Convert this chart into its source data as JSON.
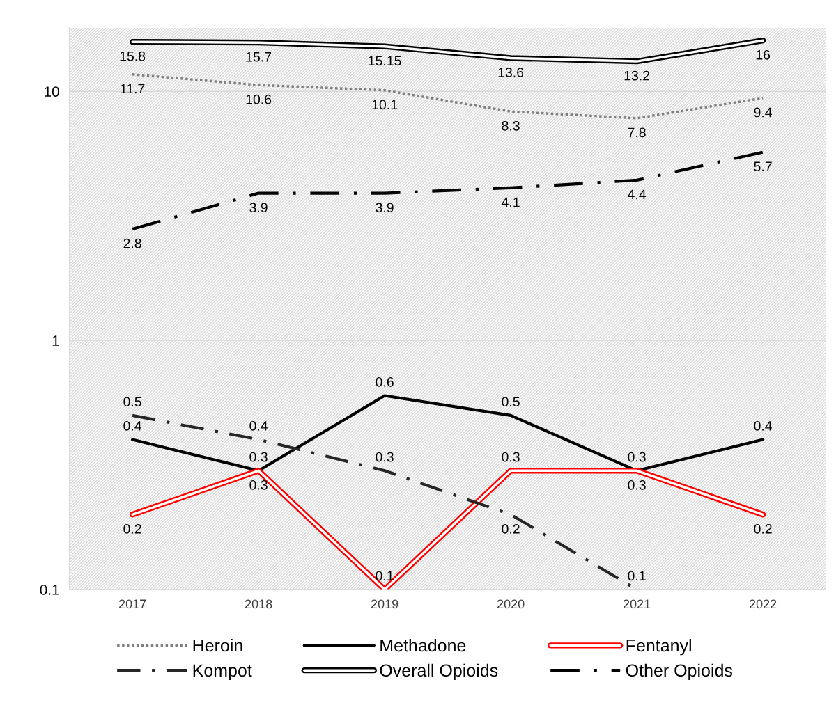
{
  "chart_data": {
    "type": "line",
    "categories": [
      "2017",
      "2018",
      "2019",
      "2020",
      "2021",
      "2022"
    ],
    "series": [
      {
        "name": "Heroin",
        "color": "#7f7f7f",
        "line_style": "dotted",
        "values": [
          11.7,
          10.6,
          10.1,
          8.3,
          7.8,
          9.4
        ]
      },
      {
        "name": "Methadone",
        "color": "#000000",
        "line_style": "solid",
        "values": [
          0.4,
          0.3,
          0.6,
          0.5,
          0.3,
          0.4
        ]
      },
      {
        "name": "Fentanyl",
        "color": "#ff0000",
        "line_style": "solid",
        "values": [
          0.2,
          0.3,
          0.1,
          0.3,
          0.3,
          0.2
        ]
      },
      {
        "name": "Kompot",
        "color": "#262626",
        "line_style": "dashed",
        "values": [
          0.5,
          0.4,
          0.3,
          0.2,
          0.1,
          null
        ]
      },
      {
        "name": "Overall Opioids",
        "color": "#000000",
        "line_style": "solid",
        "values": [
          15.8,
          15.7,
          15.15,
          13.6,
          13.2,
          16
        ]
      },
      {
        "name": "Other Opioids",
        "color": "#000000",
        "line_style": "dashed",
        "values": [
          2.8,
          3.9,
          3.9,
          4.1,
          4.4,
          5.7
        ]
      }
    ],
    "log": "y",
    "ylim": [
      0.1,
      18
    ],
    "yticks": [
      0.1,
      1,
      10
    ],
    "grid": "y",
    "legend": "bottom",
    "data_labels": true,
    "marker": "none"
  }
}
